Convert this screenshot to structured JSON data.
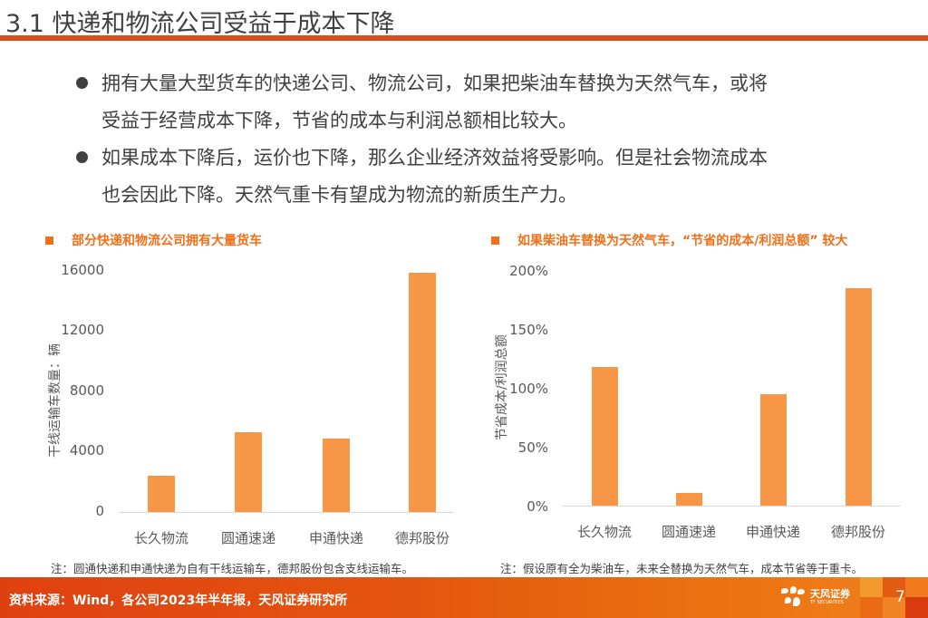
{
  "header": {
    "title": "3.1 快递和物流公司受益于成本下降"
  },
  "bullets": [
    {
      "lines": [
        "拥有大量大型货车的快递公司、物流公司，如果把柴油车替换为天然气车，或将",
        "受益于经营成本下降，节省的成本与利润总额相比较大。"
      ]
    },
    {
      "lines": [
        "如果成本下降后，运价也下降，那么企业经济效益将受影响。但是社会物流成本",
        "也会因此下降。天然气重卡有望成为物流的新质生产力。"
      ]
    }
  ],
  "colors": {
    "accent": "#d94e1a",
    "chart_title": "#f26f18",
    "bar": "#f79646",
    "text": "#404040"
  },
  "charts": {
    "left": {
      "heading": "部分快递和物流公司拥有大量货车",
      "note": "注：圆通快递和申通快递为自有干线运输车，德邦股份包含支线运输车。"
    },
    "right": {
      "heading": "如果柴油车替换为天然气车，“节省的成本/利润总额” 较大",
      "note": "注：假设原有全为柴油车，未来全替换为天然气车，成本节省等于重卡。"
    }
  },
  "chart_data": [
    {
      "type": "bar",
      "title": "部分快递和物流公司拥有大量货车",
      "categories": [
        "长久物流",
        "圆通速递",
        "申通快递",
        "德邦股份"
      ],
      "values": [
        2400,
        5300,
        4870,
        15900
      ],
      "xlabel": "",
      "ylabel": "干线运输车数量：辆",
      "ylim": [
        0,
        16000
      ],
      "yticks": [
        "0",
        "4000",
        "8000",
        "12000",
        "16000"
      ],
      "grid": false,
      "legend": null
    },
    {
      "type": "bar",
      "title": "如果柴油车替换为天然气车，“节省的成本/利润总额” 较大",
      "categories": [
        "长久物流",
        "圆通速递",
        "申通快递",
        "德邦股份"
      ],
      "values": [
        118,
        11,
        95,
        185
      ],
      "unit": "%",
      "xlabel": "",
      "ylabel": "节省成本/利润总额",
      "ylim": [
        0,
        200
      ],
      "yticks": [
        "0%",
        "50%",
        "100%",
        "150%",
        "200%"
      ],
      "grid": false,
      "legend": null
    }
  ],
  "footer": {
    "source": "资料来源：Wind，各公司2023年半年报，天风证券研究所",
    "logo_cn": "天风证券",
    "logo_en": "TF SECURITIES",
    "page_number": "7"
  }
}
